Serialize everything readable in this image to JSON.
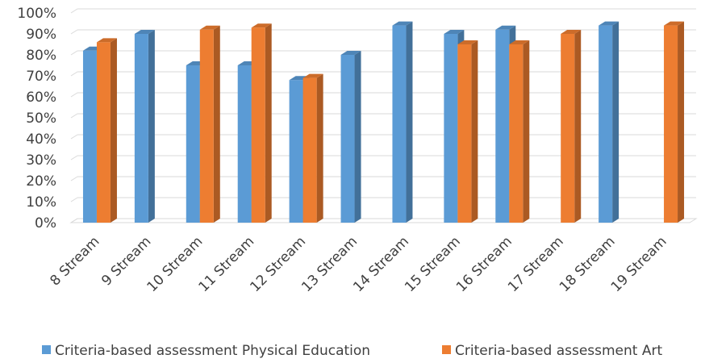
{
  "chart_data": {
    "type": "bar",
    "style": "3d-clustered-column",
    "categories": [
      "8 Stream",
      "9  Stream",
      "10  Stream",
      "11  Stream",
      "12  Stream",
      "13 Stream",
      "14  Stream",
      "15  Stream",
      "16  Stream",
      "17  Stream",
      "18  Stream",
      "19  Stream"
    ],
    "series": [
      {
        "name": "Criteria-based assessment Physical Education",
        "color": "#5b9bd5",
        "values": [
          82,
          90,
          75,
          75,
          68,
          80,
          94,
          90,
          92,
          null,
          94,
          null
        ]
      },
      {
        "name": "Criteria-based assessment Art",
        "color": "#ed7d31",
        "values": [
          86,
          null,
          92,
          93,
          69,
          null,
          null,
          85,
          85,
          90,
          null,
          94
        ]
      }
    ],
    "y_ticks": [
      "0%",
      "10%",
      "20%",
      "30%",
      "40%",
      "50%",
      "60%",
      "70%",
      "80%",
      "90%",
      "100%"
    ],
    "ylim": [
      0,
      100
    ],
    "grid": true,
    "legend_position": "bottom"
  }
}
